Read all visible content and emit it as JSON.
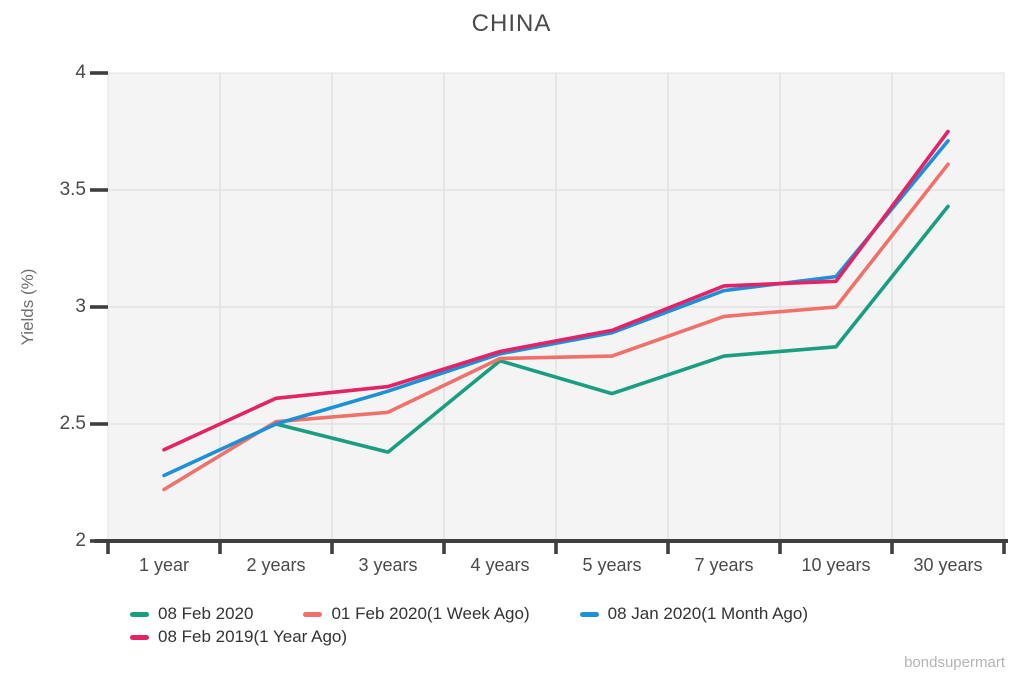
{
  "chart_data": {
    "type": "line",
    "title": "CHINA",
    "xlabel": "",
    "ylabel": "Yields (%)",
    "categories": [
      "1 year",
      "2 years",
      "3 years",
      "4 years",
      "5 years",
      "7 years",
      "10 years",
      "30 years"
    ],
    "y_tick_values": [
      4,
      3.5,
      3,
      2.5,
      2
    ],
    "y_tick_labels": [
      "4",
      "3.5",
      "3",
      "2.5",
      "2"
    ],
    "ylim": [
      2,
      4
    ],
    "grid": true,
    "legend_position": "bottom-left",
    "plot_bg_color": "#f4f4f4",
    "gridline_color": "#e2e2e2",
    "axis_color": "#3f3f3f",
    "series": [
      {
        "name": "08 Feb 2020",
        "color": "#1a9e80",
        "values": [
          null,
          2.5,
          2.38,
          2.77,
          2.63,
          2.79,
          2.83,
          3.43
        ]
      },
      {
        "name": "01 Feb 2020(1 Week Ago)",
        "color": "#f0716a",
        "values": [
          2.22,
          2.51,
          2.55,
          2.78,
          2.79,
          2.96,
          3.0,
          3.61
        ]
      },
      {
        "name": "08 Jan 2020(1 Month Ago)",
        "color": "#1e90d6",
        "values": [
          2.28,
          2.5,
          2.64,
          2.8,
          2.89,
          3.07,
          3.13,
          3.71
        ]
      },
      {
        "name": "08 Feb 2019(1 Year Ago)",
        "color": "#e32365",
        "values": [
          2.39,
          2.61,
          2.66,
          2.81,
          2.9,
          3.09,
          3.11,
          3.75
        ]
      }
    ]
  },
  "footer": {
    "watermark": "bondsupermart"
  }
}
